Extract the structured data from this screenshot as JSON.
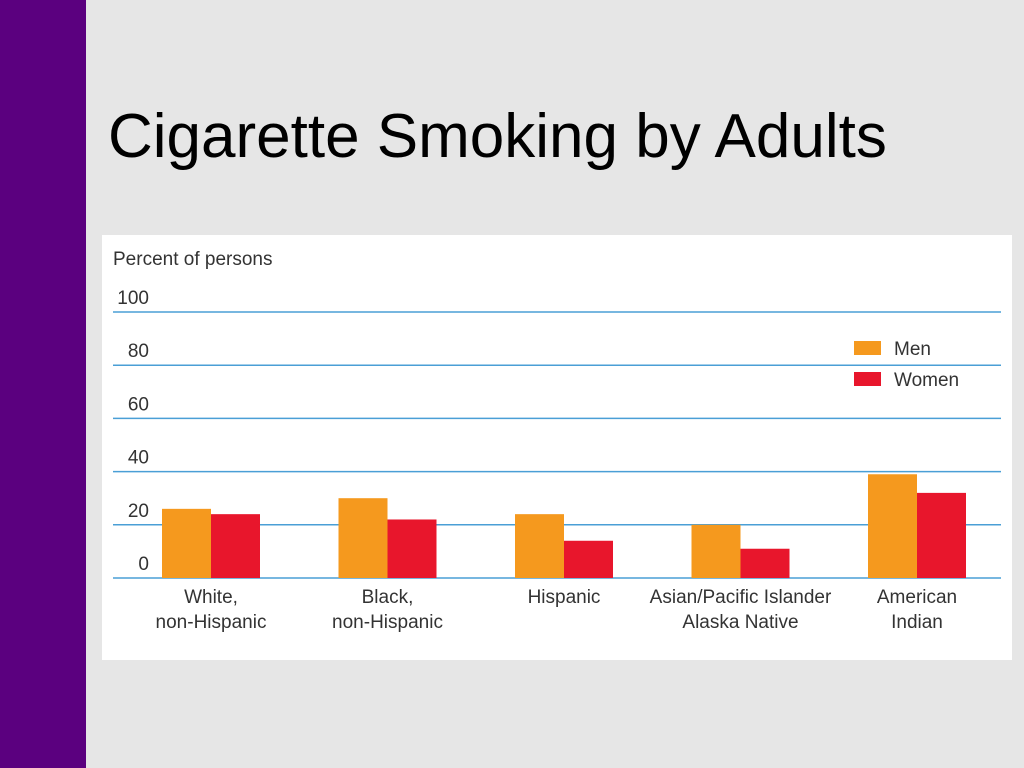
{
  "slide": {
    "title": "Cigarette Smoking by Adults"
  },
  "colors": {
    "sidebar": "#5b007f",
    "background": "#e6e6e6",
    "gridline": "#4a9fd6",
    "men": "#f5991e",
    "women": "#e8162c"
  },
  "chart_data": {
    "type": "bar",
    "title": "",
    "ylabel": "Percent of persons",
    "xlabel": "",
    "ylim": [
      0,
      100
    ],
    "yticks": [
      0,
      20,
      40,
      60,
      80,
      100
    ],
    "grid": true,
    "legend_position": "top-right",
    "categories": [
      [
        "White,",
        "non-Hispanic"
      ],
      [
        "Black,",
        "non-Hispanic"
      ],
      [
        "Hispanic"
      ],
      [
        "Asian/Pacific Islander",
        "Alaska Native"
      ],
      [
        "American",
        "Indian"
      ]
    ],
    "series": [
      {
        "name": "Men",
        "color": "#f5991e",
        "values": [
          26,
          30,
          24,
          20,
          39
        ]
      },
      {
        "name": "Women",
        "color": "#e8162c",
        "values": [
          24,
          22,
          14,
          11,
          32
        ]
      }
    ]
  }
}
